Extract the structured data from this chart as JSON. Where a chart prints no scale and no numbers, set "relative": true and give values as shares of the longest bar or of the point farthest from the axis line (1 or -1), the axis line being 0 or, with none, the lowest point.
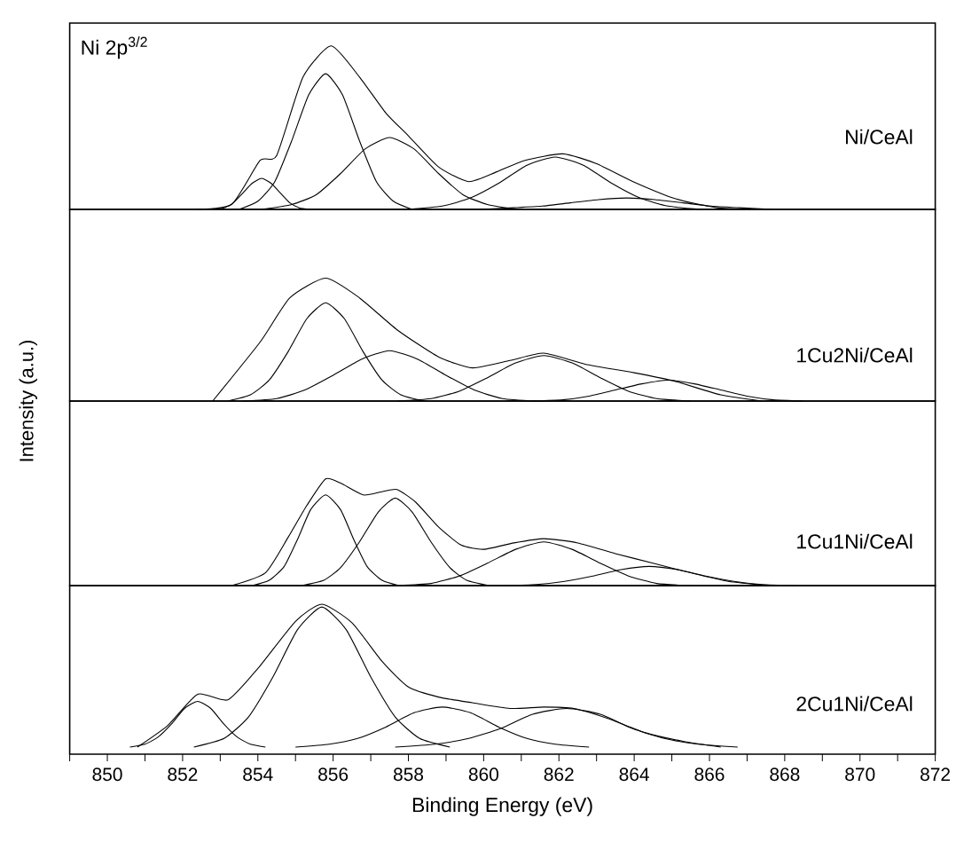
{
  "chart_data": [
    {
      "type": "line",
      "relative": true,
      "title": "Ni 2p$^{3/2}$",
      "annotations": [
        "Ni/CeAl"
      ],
      "xlim": [
        849,
        872
      ],
      "tick_labels": false,
      "series": [
        {
          "color": "#000000",
          "x": [
            852.3,
            853.3,
            854.06,
            854.5,
            855.2,
            855.95,
            856.7,
            857.4,
            858.0,
            858.8,
            859.6,
            860.35,
            861.1,
            862.1,
            863.0,
            863.97,
            865.1,
            866.2,
            867.1
          ],
          "values": [
            0,
            0.03,
            0.3,
            0.33,
            0.81,
            1.0,
            0.81,
            0.59,
            0.45,
            0.26,
            0.17,
            0.23,
            0.3,
            0.34,
            0.28,
            0.17,
            0.065,
            0.01,
            0
          ]
        },
        {
          "color": "#000000",
          "x": [
            852.8,
            853.1,
            853.35,
            853.6,
            853.85,
            854.1,
            854.35,
            854.6,
            854.85,
            855.1,
            855.4
          ],
          "values": [
            0,
            0.01,
            0.04,
            0.1,
            0.16,
            0.19,
            0.16,
            0.1,
            0.04,
            0.01,
            0
          ]
        },
        {
          "color": "#000000",
          "x": [
            853.5,
            854.0,
            854.45,
            854.9,
            855.35,
            855.8,
            856.25,
            856.7,
            857.15,
            857.6,
            858.1
          ],
          "values": [
            0,
            0.05,
            0.17,
            0.42,
            0.7,
            0.83,
            0.7,
            0.42,
            0.17,
            0.05,
            0
          ]
        },
        {
          "color": "#000000",
          "x": [
            854.1,
            854.9,
            855.55,
            856.2,
            856.85,
            857.5,
            858.15,
            858.8,
            859.45,
            860.1,
            860.9
          ],
          "values": [
            0,
            0.03,
            0.09,
            0.22,
            0.37,
            0.44,
            0.37,
            0.22,
            0.09,
            0.03,
            0
          ]
        },
        {
          "color": "#000000",
          "x": [
            858.0,
            858.9,
            859.65,
            860.4,
            861.15,
            861.9,
            862.65,
            863.4,
            864.15,
            864.9,
            865.8
          ],
          "values": [
            0,
            0.02,
            0.07,
            0.16,
            0.27,
            0.32,
            0.27,
            0.16,
            0.07,
            0.02,
            0
          ]
        },
        {
          "color": "#000000",
          "x": [
            859.9,
            860.8,
            861.55,
            862.3,
            863.05,
            863.8,
            864.55,
            865.3,
            866.05,
            866.8,
            867.7
          ],
          "values": [
            0,
            0.01,
            0.02,
            0.04,
            0.06,
            0.07,
            0.06,
            0.04,
            0.02,
            0.01,
            0
          ]
        }
      ]
    },
    {
      "type": "line",
      "relative": true,
      "ylabel": "Intensity (a.u.)",
      "annotations": [
        "1Cu2Ni/CeAl"
      ],
      "xlim": [
        849,
        872
      ],
      "tick_labels": false,
      "series": [
        {
          "color": "#000000",
          "x": [
            852.8,
            854.06,
            854.85,
            855.8,
            856.7,
            857.7,
            858.8,
            859.7,
            860.7,
            861.6,
            862.7,
            864.0,
            865.1,
            866.3,
            867.4
          ],
          "values": [
            0,
            0.48,
            0.84,
            1.0,
            0.84,
            0.58,
            0.36,
            0.27,
            0.33,
            0.39,
            0.3,
            0.23,
            0.16,
            0.05,
            0
          ]
        },
        {
          "color": "#000000",
          "x": [
            853.2,
            853.8,
            854.3,
            854.8,
            855.3,
            855.8,
            856.3,
            856.8,
            857.3,
            857.8,
            858.4
          ],
          "values": [
            0,
            0.05,
            0.17,
            0.4,
            0.67,
            0.8,
            0.67,
            0.4,
            0.17,
            0.05,
            0
          ]
        },
        {
          "color": "#000000",
          "x": [
            853.6,
            854.5,
            855.25,
            856.0,
            856.75,
            857.5,
            858.25,
            859.0,
            859.75,
            860.5,
            861.4
          ],
          "values": [
            0,
            0.02,
            0.09,
            0.21,
            0.34,
            0.41,
            0.34,
            0.21,
            0.09,
            0.02,
            0
          ]
        },
        {
          "color": "#000000",
          "x": [
            857.7,
            858.6,
            859.35,
            860.1,
            860.85,
            861.6,
            862.35,
            863.1,
            863.85,
            864.6,
            865.5
          ],
          "values": [
            0,
            0.02,
            0.08,
            0.19,
            0.31,
            0.37,
            0.31,
            0.19,
            0.08,
            0.02,
            0
          ]
        },
        {
          "color": "#000000",
          "x": [
            861.3,
            862.1,
            862.8,
            863.5,
            864.2,
            864.9,
            865.6,
            866.3,
            867.0,
            867.7,
            868.5
          ],
          "values": [
            0,
            0.01,
            0.04,
            0.09,
            0.14,
            0.17,
            0.14,
            0.09,
            0.04,
            0.01,
            0
          ]
        }
      ]
    },
    {
      "type": "line",
      "relative": true,
      "annotations": [
        "1Cu1Ni/CeAl"
      ],
      "xlim": [
        849,
        872
      ],
      "tick_labels": false,
      "series": [
        {
          "color": "#000000",
          "x": [
            853.3,
            854.2,
            854.8,
            855.3,
            855.8,
            856.2,
            856.8,
            857.3,
            857.7,
            858.2,
            858.8,
            859.4,
            860.0,
            860.8,
            861.6,
            862.5,
            863.5,
            864.5,
            865.5,
            866.5,
            867.6
          ],
          "values": [
            0,
            0.12,
            0.45,
            0.75,
            1.0,
            0.96,
            0.85,
            0.88,
            0.9,
            0.78,
            0.55,
            0.38,
            0.34,
            0.4,
            0.44,
            0.4,
            0.3,
            0.21,
            0.12,
            0.04,
            0
          ]
        },
        {
          "color": "#000000",
          "x": [
            853.85,
            854.3,
            854.7,
            855.05,
            855.4,
            855.8,
            856.2,
            856.55,
            856.9,
            857.3,
            857.75
          ],
          "values": [
            0,
            0.05,
            0.18,
            0.43,
            0.71,
            0.85,
            0.71,
            0.43,
            0.18,
            0.05,
            0
          ]
        },
        {
          "color": "#000000",
          "x": [
            855.15,
            855.75,
            856.2,
            856.7,
            857.2,
            857.65,
            858.1,
            858.6,
            859.1,
            859.55,
            860.15
          ],
          "values": [
            0,
            0.05,
            0.17,
            0.41,
            0.69,
            0.82,
            0.69,
            0.41,
            0.17,
            0.05,
            0
          ]
        },
        {
          "color": "#000000",
          "x": [
            857.7,
            858.6,
            859.35,
            860.1,
            860.85,
            861.6,
            862.35,
            863.1,
            863.85,
            864.6,
            865.5
          ],
          "values": [
            0,
            0.02,
            0.09,
            0.21,
            0.34,
            0.41,
            0.34,
            0.21,
            0.09,
            0.02,
            0
          ]
        },
        {
          "color": "#000000",
          "x": [
            860.5,
            861.4,
            862.15,
            862.9,
            863.65,
            864.4,
            865.15,
            865.9,
            866.65,
            867.4,
            868.3
          ],
          "values": [
            0,
            0.01,
            0.04,
            0.09,
            0.15,
            0.18,
            0.15,
            0.09,
            0.04,
            0.01,
            0
          ]
        }
      ]
    },
    {
      "type": "line",
      "relative": true,
      "xlabel": "Binding Energy (eV)",
      "annotations": [
        "2Cu1Ni/CeAl"
      ],
      "xlim": [
        849,
        872
      ],
      "tick_labels": "x",
      "xticks": [
        {
          "value": 849,
          "label": null
        },
        850,
        {
          "value": 851,
          "label": null
        },
        852,
        {
          "value": 853,
          "label": null
        },
        854,
        {
          "value": 855,
          "label": null
        },
        856,
        {
          "value": 857,
          "label": null
        },
        858,
        {
          "value": 859,
          "label": null
        },
        860,
        {
          "value": 861,
          "label": null
        },
        862,
        {
          "value": 863,
          "label": null
        },
        864,
        {
          "value": 865,
          "label": null
        },
        866,
        {
          "value": 867,
          "label": null
        },
        868,
        {
          "value": 869,
          "label": null
        },
        870,
        {
          "value": 871,
          "label": null
        },
        872
      ],
      "series": [
        {
          "color": "#000000",
          "x": [
            850.8,
            851.6,
            852.4,
            853.2,
            854.0,
            855.0,
            855.7,
            856.5,
            857.3,
            858.0,
            858.8,
            859.7,
            860.7,
            861.6,
            862.4,
            863.3,
            864.3,
            865.3,
            866.3
          ],
          "values": [
            0,
            0.15,
            0.37,
            0.33,
            0.55,
            0.88,
            1.0,
            0.87,
            0.6,
            0.42,
            0.35,
            0.31,
            0.27,
            0.28,
            0.27,
            0.2,
            0.1,
            0.04,
            0
          ]
        },
        {
          "color": "#000000",
          "x": [
            850.6,
            851.0,
            851.35,
            851.7,
            852.05,
            852.4,
            852.75,
            853.1,
            853.45,
            853.8,
            854.2
          ],
          "values": [
            0,
            0.02,
            0.07,
            0.16,
            0.27,
            0.32,
            0.27,
            0.16,
            0.07,
            0.02,
            0
          ]
        },
        {
          "color": "#000000",
          "x": [
            852.3,
            853.1,
            853.75,
            854.4,
            855.05,
            855.7,
            856.35,
            857.0,
            857.65,
            858.3,
            859.1
          ],
          "values": [
            0,
            0.06,
            0.21,
            0.49,
            0.82,
            0.98,
            0.82,
            0.49,
            0.21,
            0.06,
            0
          ]
        },
        {
          "color": "#000000",
          "x": [
            855.0,
            855.9,
            856.65,
            857.4,
            858.15,
            858.9,
            859.65,
            860.4,
            861.15,
            861.9,
            862.8
          ],
          "values": [
            0,
            0.02,
            0.06,
            0.14,
            0.24,
            0.28,
            0.24,
            0.14,
            0.06,
            0.02,
            0
          ]
        },
        {
          "color": "#000000",
          "x": [
            857.65,
            858.7,
            859.6,
            860.45,
            861.3,
            862.2,
            863.1,
            863.95,
            864.8,
            865.7,
            866.75
          ],
          "values": [
            0,
            0.02,
            0.06,
            0.13,
            0.23,
            0.27,
            0.23,
            0.13,
            0.06,
            0.02,
            0
          ]
        }
      ]
    }
  ]
}
